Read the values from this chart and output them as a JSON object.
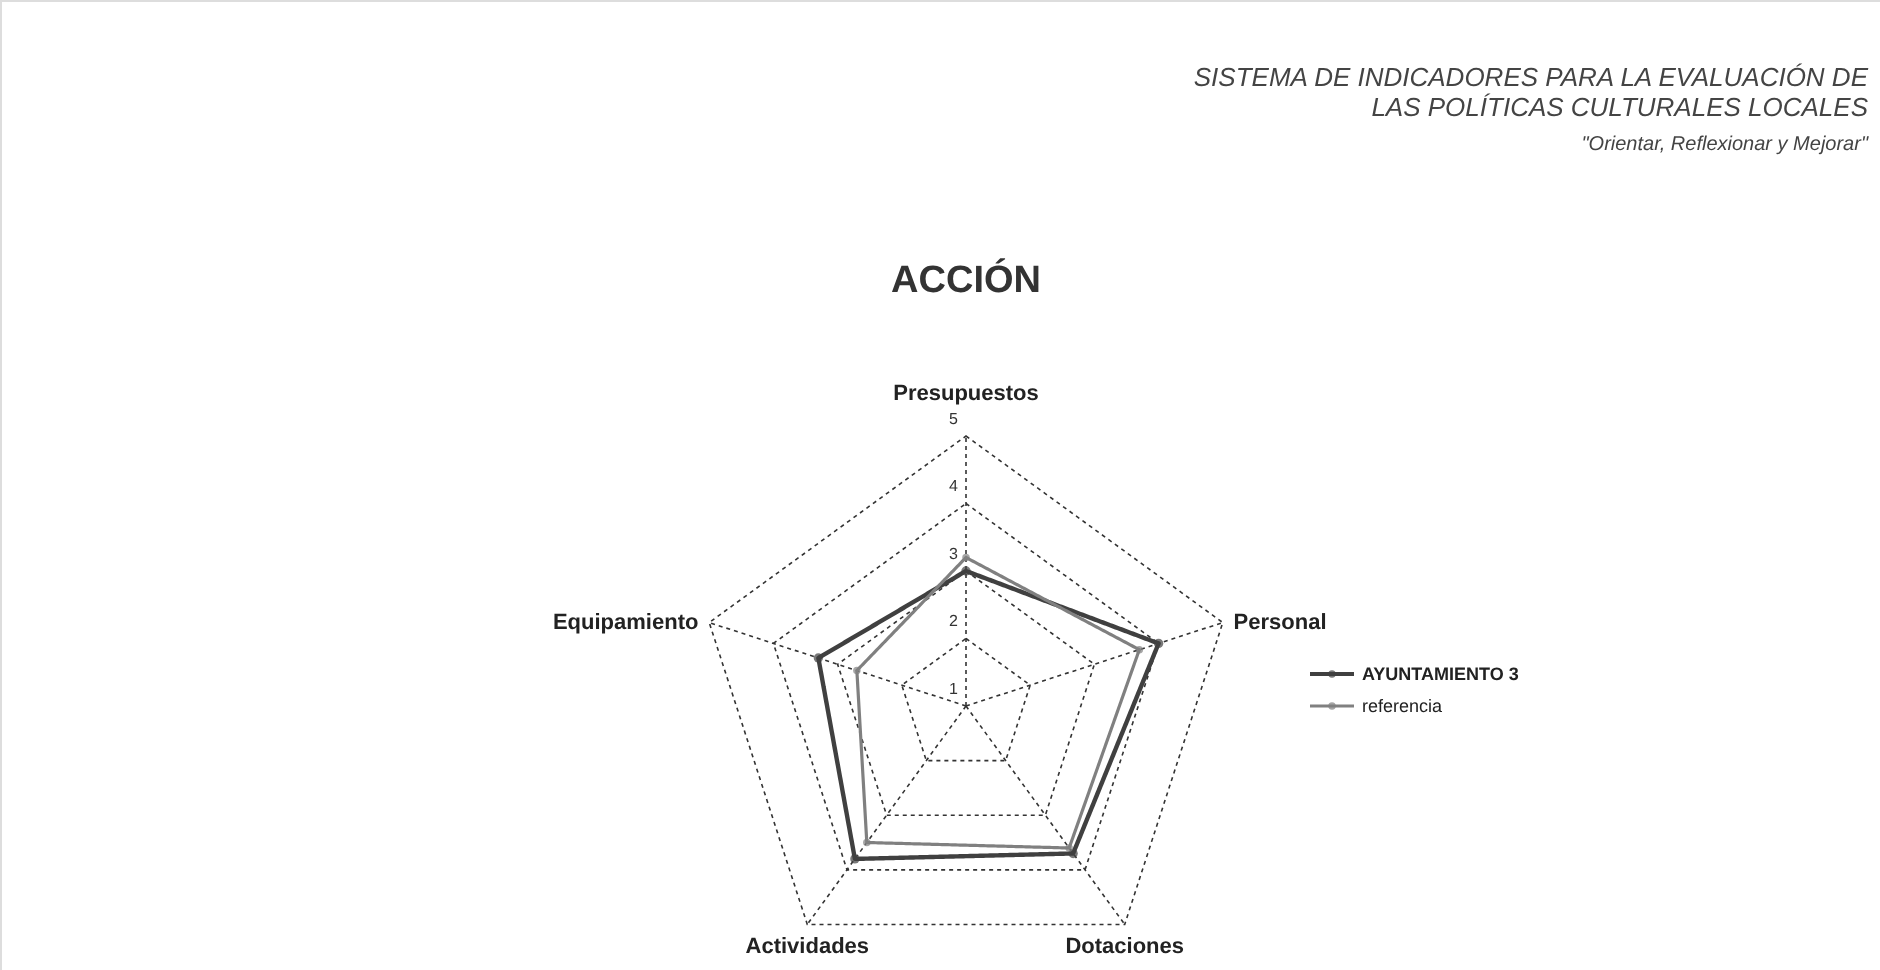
{
  "chart_data": {
    "type": "radar",
    "title": "ACCIÓN",
    "subtitle": "SISTEMA DE INDICADORES PARA LA EVALUACIÓN DE\nLAS POLÍTICAS CULTURALES LOCALES",
    "annotations": [
      "\"Orientar, Reflexionar y Mejorar\""
    ],
    "categories": [
      "Presupuestos",
      "Personal",
      "Dotaciones",
      "Actividades",
      "Equipamiento"
    ],
    "series": [
      {
        "name": "AYUNTAMIENTO 3",
        "color": "#404040",
        "values": [
          3.0,
          4.0,
          3.7,
          3.8,
          3.3
        ]
      },
      {
        "name": "referencia",
        "color": "#808080",
        "values": [
          3.2,
          3.7,
          3.6,
          3.5,
          2.7
        ]
      }
    ],
    "ylim": [
      1,
      5
    ],
    "yticks": [
      1,
      2,
      3,
      4,
      5
    ],
    "grid": true,
    "legend": "right",
    "marker": "circle",
    "line_style": "solid"
  }
}
